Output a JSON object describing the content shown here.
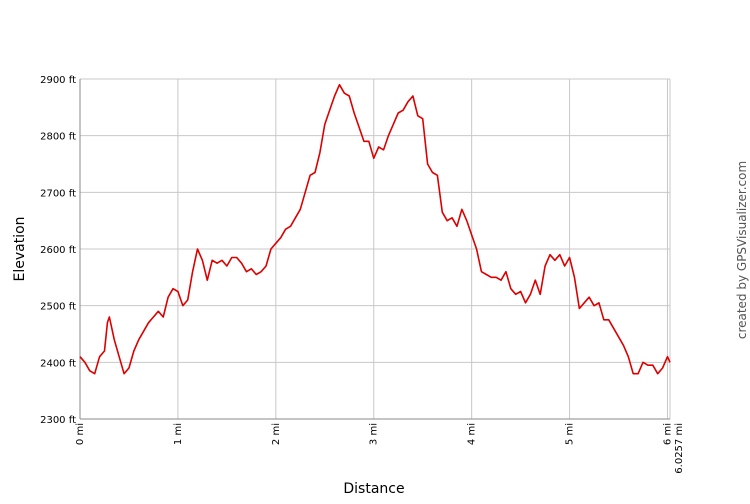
{
  "chart_data": {
    "type": "line",
    "x_label": "Distance",
    "y_label": "Elevation",
    "credit": "created by GPSVisualizer.com",
    "xlim": [
      0,
      6.0257
    ],
    "ylim": [
      2300,
      2900
    ],
    "xticks": [
      {
        "value": 0,
        "label": "0 mi"
      },
      {
        "value": 1,
        "label": "1 mi"
      },
      {
        "value": 2,
        "label": "2 mi"
      },
      {
        "value": 3,
        "label": "3 mi"
      },
      {
        "value": 4,
        "label": "4 mi"
      },
      {
        "value": 5,
        "label": "5 mi"
      },
      {
        "value": 6,
        "label": "6 mi"
      },
      {
        "value": 6.0257,
        "label": "6.0257 mi"
      }
    ],
    "yticks": [
      {
        "value": 2300,
        "label": "2300 ft"
      },
      {
        "value": 2400,
        "label": "2400 ft"
      },
      {
        "value": 2500,
        "label": "2500 ft"
      },
      {
        "value": 2600,
        "label": "2600 ft"
      },
      {
        "value": 2700,
        "label": "2700 ft"
      },
      {
        "value": 2800,
        "label": "2800 ft"
      },
      {
        "value": 2900,
        "label": "2900 ft"
      }
    ],
    "grid": true,
    "series": [
      {
        "color": "#dd0000",
        "x": [
          0,
          0.05,
          0.1,
          0.15,
          0.2,
          0.25,
          0.28,
          0.3,
          0.35,
          0.4,
          0.45,
          0.5,
          0.55,
          0.6,
          0.65,
          0.7,
          0.75,
          0.8,
          0.85,
          0.9,
          0.95,
          1.0,
          1.05,
          1.1,
          1.15,
          1.2,
          1.25,
          1.3,
          1.35,
          1.4,
          1.45,
          1.5,
          1.55,
          1.6,
          1.65,
          1.7,
          1.75,
          1.8,
          1.85,
          1.9,
          1.95,
          2.0,
          2.05,
          2.1,
          2.15,
          2.2,
          2.25,
          2.3,
          2.35,
          2.4,
          2.45,
          2.5,
          2.55,
          2.6,
          2.65,
          2.7,
          2.75,
          2.8,
          2.85,
          2.9,
          2.95,
          3.0,
          3.05,
          3.1,
          3.15,
          3.2,
          3.25,
          3.3,
          3.35,
          3.4,
          3.45,
          3.5,
          3.55,
          3.6,
          3.65,
          3.7,
          3.75,
          3.8,
          3.85,
          3.9,
          3.95,
          4.0,
          4.05,
          4.1,
          4.15,
          4.2,
          4.25,
          4.3,
          4.35,
          4.4,
          4.45,
          4.5,
          4.55,
          4.6,
          4.65,
          4.7,
          4.75,
          4.8,
          4.85,
          4.9,
          4.95,
          5.0,
          5.05,
          5.1,
          5.15,
          5.2,
          5.25,
          5.3,
          5.35,
          5.4,
          5.45,
          5.5,
          5.55,
          5.6,
          5.65,
          5.7,
          5.75,
          5.8,
          5.85,
          5.9,
          5.95,
          6.0,
          6.0257
        ],
        "values": [
          2410,
          2400,
          2385,
          2380,
          2410,
          2420,
          2470,
          2480,
          2440,
          2410,
          2380,
          2390,
          2420,
          2440,
          2455,
          2470,
          2480,
          2490,
          2480,
          2515,
          2530,
          2525,
          2500,
          2510,
          2560,
          2600,
          2580,
          2545,
          2580,
          2575,
          2580,
          2570,
          2585,
          2585,
          2575,
          2560,
          2565,
          2555,
          2560,
          2570,
          2600,
          2610,
          2620,
          2635,
          2640,
          2655,
          2670,
          2700,
          2730,
          2735,
          2770,
          2820,
          2845,
          2870,
          2890,
          2875,
          2870,
          2840,
          2815,
          2790,
          2790,
          2760,
          2780,
          2775,
          2800,
          2820,
          2840,
          2845,
          2860,
          2870,
          2835,
          2830,
          2750,
          2735,
          2730,
          2665,
          2650,
          2655,
          2640,
          2670,
          2650,
          2625,
          2600,
          2560,
          2555,
          2550,
          2550,
          2545,
          2560,
          2530,
          2520,
          2525,
          2505,
          2520,
          2545,
          2520,
          2570,
          2590,
          2580,
          2590,
          2570,
          2585,
          2550,
          2495,
          2505,
          2515,
          2500,
          2505,
          2475,
          2475,
          2460,
          2445,
          2430,
          2410,
          2380,
          2380,
          2400,
          2395,
          2395,
          2380,
          2390,
          2410,
          2400
        ]
      }
    ]
  }
}
